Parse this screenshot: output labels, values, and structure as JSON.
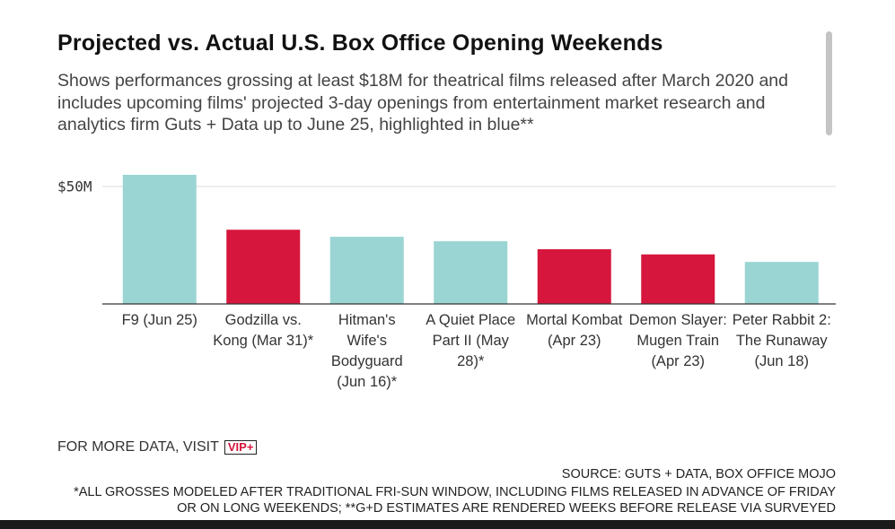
{
  "chart_data": {
    "type": "bar",
    "title": "Projected vs. Actual U.S. Box Office Opening Weekends",
    "subtitle": "Shows performances grossing at least $18M for theatrical films released after March 2020 and includes upcoming films' projected 3-day openings from entertainment market research and analytics firm Guts + Data up to June 25, highlighted in blue**",
    "categories": [
      "F9 (Jun 25)",
      "Godzilla vs. Kong (Mar 31)*",
      "Hitman's Wife's Bodyguard (Jun 16)*",
      "A Quiet Place Part II (May 28)*",
      "Mortal Kombat (Apr 23)",
      "Demon Slayer: Mugen Train (Apr 23)",
      "Peter Rabbit 2: The Runaway (Jun 18)"
    ],
    "values": [
      55,
      31.6,
      28.6,
      26.7,
      23.3,
      21.1,
      17.9
    ],
    "colors": [
      "#9ad5d3",
      "#d6163d",
      "#9ad5d3",
      "#9ad5d3",
      "#d6163d",
      "#d6163d",
      "#9ad5d3"
    ],
    "ylim": [
      0,
      57
    ],
    "yticks": [
      {
        "value": 50,
        "label": "$50M"
      }
    ],
    "grid": true,
    "more_data": "FOR MORE DATA, VISIT",
    "logo": "VIP+",
    "source": "SOURCE: GUTS + DATA, BOX OFFICE MOJO",
    "notes": "*ALL GROSSES MODELED AFTER TRADITIONAL FRI-SUN WINDOW, INCLUDING FILMS RELEASED IN ADVANCE OF FRIDAY OR ON LONG WEEKENDS; **G+D ESTIMATES ARE RENDERED WEEKS BEFORE RELEASE VIA SURVEYED"
  }
}
